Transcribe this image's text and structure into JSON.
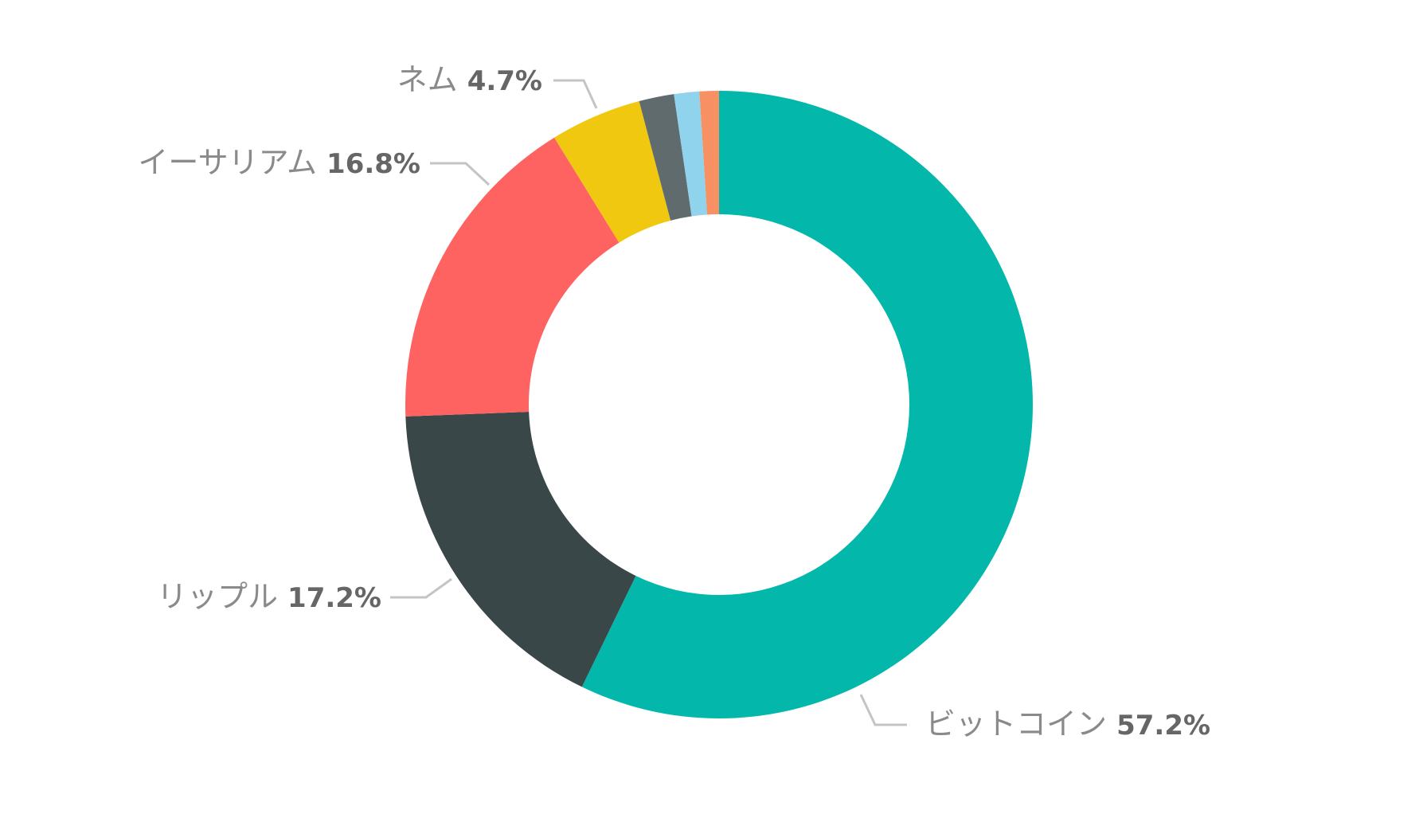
{
  "chart_data": {
    "type": "pie",
    "donut": true,
    "title": "",
    "slices": [
      {
        "name": "ビットコイン",
        "value": 57.2,
        "label": "57.2%",
        "color": "#03b8ab",
        "labeled": true
      },
      {
        "name": "リップル",
        "value": 17.2,
        "label": "17.2%",
        "color": "#3a4749",
        "labeled": true
      },
      {
        "name": "イーサリアム",
        "value": 16.8,
        "label": "16.8%",
        "color": "#ff6361",
        "labeled": true
      },
      {
        "name": "ネム",
        "value": 4.7,
        "label": "4.7%",
        "color": "#f0c80f",
        "labeled": true
      },
      {
        "value": 1.8,
        "color": "#5f6b6d",
        "labeled": false
      },
      {
        "value": 1.3,
        "color": "#8fd3ec",
        "labeled": false
      },
      {
        "value": 1.0,
        "color": "#f79063",
        "labeled": false
      }
    ],
    "start_angle": "top",
    "direction": "clockwise",
    "legend": "none"
  }
}
